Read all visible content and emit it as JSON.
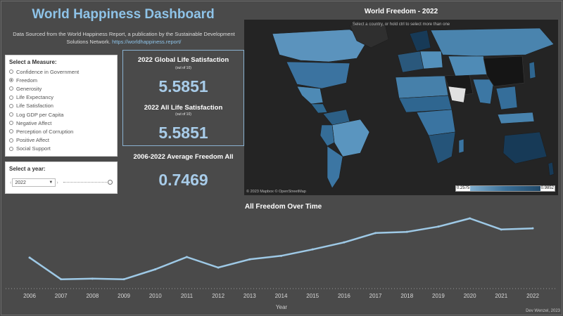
{
  "dashboard": {
    "title": "World Happiness Dashboard",
    "source_text": "Data Sourced from the World Happiness Report, a publication by the Sustainable Development Solutions Network.",
    "source_link": "https://worldhappiness.report/",
    "credit": "Dev Wenzel, 2023"
  },
  "measure_panel": {
    "heading": "Select a Measure:",
    "options": [
      {
        "label": "Confidence in Government",
        "selected": false
      },
      {
        "label": "Freedom",
        "selected": true
      },
      {
        "label": "Generosity",
        "selected": false
      },
      {
        "label": "Life Expectancy",
        "selected": false
      },
      {
        "label": "Life Satisfaction",
        "selected": false
      },
      {
        "label": "Log GDP per Capita",
        "selected": false
      },
      {
        "label": "Negative Affect",
        "selected": false
      },
      {
        "label": "Perception of Corruption",
        "selected": false
      },
      {
        "label": "Positive Affect",
        "selected": false
      },
      {
        "label": "Social Support",
        "selected": false
      }
    ]
  },
  "year_panel": {
    "heading": "Select a year:",
    "selected_year": "2022"
  },
  "stats": {
    "global_label": "2022 Global Life Satisfaction",
    "global_sub": "(out of 10)",
    "global_value": "5.5851",
    "all_label": "2022 All Life Satisfaction",
    "all_sub": "(out of 10)",
    "all_value": "5.5851",
    "freedom_label": "2006-2022 Average Freedom All",
    "freedom_value": "0.7469"
  },
  "map": {
    "title": "World Freedom - 2022",
    "hint": "Select a country, or hold ctrl to select more than one",
    "attribution": "© 2023 Mapbox © OpenStreetMap",
    "legend_min": "0.2575",
    "legend_max": "0.9852",
    "colors": {
      "low": "#9ec9e6",
      "mid": "#3a6f97",
      "high": "#173a57"
    }
  },
  "chart_data": {
    "type": "line",
    "title": "All Freedom Over Time",
    "xlabel": "Year",
    "ylabel": "",
    "categories": [
      "2006",
      "2007",
      "2008",
      "2009",
      "2010",
      "2011",
      "2012",
      "2013",
      "2014",
      "2015",
      "2016",
      "2017",
      "2018",
      "2019",
      "2020",
      "2021",
      "2022"
    ],
    "values": [
      0.717,
      0.68,
      0.681,
      0.68,
      0.697,
      0.718,
      0.7,
      0.714,
      0.72,
      0.731,
      0.743,
      0.759,
      0.761,
      0.77,
      0.784,
      0.765,
      0.767
    ],
    "ylim": [
      0.67,
      0.79
    ],
    "line_color": "#9ec9e6",
    "grid": false
  }
}
